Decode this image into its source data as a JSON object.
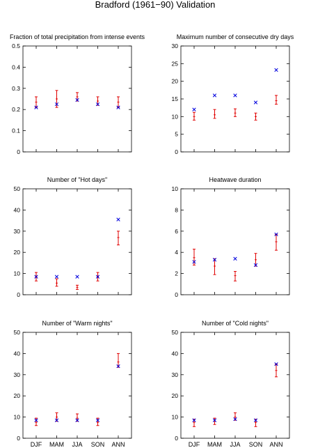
{
  "figure": {
    "title": "Bradford (1961−90) Validation"
  },
  "colors": {
    "model_errorbar": "#e00000",
    "observed_marker": "#0000dd",
    "axes": "#000000",
    "background": "#ffffff"
  },
  "chart_data": [
    {
      "type": "scatter",
      "title": "Fraction of total precipitation from intense events",
      "categories": [
        "DJF",
        "MAM",
        "JJA",
        "SON",
        "ANN"
      ],
      "ylim": [
        0,
        0.5
      ],
      "yticks": [
        "0",
        "0.1",
        "0.2",
        "0.3",
        "0.4",
        "0.5"
      ],
      "xticklabels_shown": false,
      "grid": false,
      "series": [
        {
          "marker": "errorbar",
          "center": [
            0.235,
            0.25,
            0.26,
            0.24,
            0.235
          ],
          "low": [
            0.21,
            0.21,
            0.24,
            0.22,
            0.21
          ],
          "high": [
            0.26,
            0.29,
            0.28,
            0.26,
            0.26
          ]
        },
        {
          "marker": "x",
          "values": [
            0.21,
            0.225,
            0.245,
            0.225,
            0.21
          ]
        }
      ]
    },
    {
      "type": "scatter",
      "title": "Maximum number of consecutive dry days",
      "categories": [
        "DJF",
        "MAM",
        "JJA",
        "SON",
        "ANN"
      ],
      "ylim": [
        0,
        30
      ],
      "yticks": [
        "0",
        "5",
        "10",
        "15",
        "20",
        "25",
        "30"
      ],
      "xticklabels_shown": false,
      "grid": false,
      "series": [
        {
          "marker": "errorbar",
          "center": [
            10,
            10.5,
            11,
            10,
            14.5
          ],
          "low": [
            9,
            9.5,
            10,
            9,
            13.5
          ],
          "high": [
            11.2,
            12,
            12.2,
            11,
            16
          ]
        },
        {
          "marker": "x",
          "values": [
            12,
            16,
            16,
            14,
            23.2
          ]
        }
      ]
    },
    {
      "type": "scatter",
      "title": "Number of \"Hot days\"",
      "categories": [
        "DJF",
        "MAM",
        "JJA",
        "SON",
        "ANN"
      ],
      "ylim": [
        0,
        50
      ],
      "yticks": [
        "0",
        "10",
        "20",
        "30",
        "40",
        "50"
      ],
      "xticklabels_shown": false,
      "grid": false,
      "series": [
        {
          "marker": "errorbar",
          "center": [
            8.5,
            5.5,
            3.5,
            8.5,
            27
          ],
          "low": [
            6.5,
            4,
            2.5,
            6.5,
            23.5
          ],
          "high": [
            10.5,
            7.5,
            4.5,
            10.5,
            30
          ]
        },
        {
          "marker": "x",
          "values": [
            8.5,
            8.5,
            8.5,
            8.5,
            35.5
          ]
        }
      ]
    },
    {
      "type": "scatter",
      "title": "Heatwave duration",
      "categories": [
        "DJF",
        "MAM",
        "JJA",
        "SON",
        "ANN"
      ],
      "ylim": [
        0,
        10
      ],
      "yticks": [
        "0",
        "2",
        "4",
        "6",
        "8",
        "10"
      ],
      "xticklabels_shown": false,
      "grid": false,
      "series": [
        {
          "marker": "errorbar",
          "center": [
            3.5,
            2.7,
            1.8,
            3.3,
            5
          ],
          "low": [
            2.8,
            1.9,
            1.3,
            2.7,
            4.2
          ],
          "high": [
            4.3,
            3.4,
            2.2,
            3.9,
            5.7
          ]
        },
        {
          "marker": "x",
          "values": [
            3.1,
            3.3,
            3.4,
            2.8,
            5.7
          ]
        }
      ]
    },
    {
      "type": "scatter",
      "title": "Number of \"Warm nights\"",
      "categories": [
        "DJF",
        "MAM",
        "JJA",
        "SON",
        "ANN"
      ],
      "ylim": [
        0,
        50
      ],
      "yticks": [
        "0",
        "10",
        "20",
        "30",
        "40",
        "50"
      ],
      "xticklabels_shown": true,
      "grid": false,
      "series": [
        {
          "marker": "errorbar",
          "center": [
            7.5,
            10,
            9.5,
            7.5,
            36
          ],
          "low": [
            6,
            8,
            8,
            6,
            33.5
          ],
          "high": [
            9.5,
            12,
            11.5,
            9.5,
            40
          ]
        },
        {
          "marker": "x",
          "values": [
            8.5,
            8.5,
            8.5,
            8.5,
            34
          ]
        }
      ]
    },
    {
      "type": "scatter",
      "title": "Number of \"Cold nights\"",
      "categories": [
        "DJF",
        "MAM",
        "JJA",
        "SON",
        "ANN"
      ],
      "ylim": [
        0,
        50
      ],
      "yticks": [
        "0",
        "10",
        "20",
        "30",
        "40",
        "50"
      ],
      "xticklabels_shown": true,
      "grid": false,
      "series": [
        {
          "marker": "errorbar",
          "center": [
            7.5,
            8,
            10,
            7.5,
            32
          ],
          "low": [
            5.5,
            6.5,
            8.5,
            5.5,
            29
          ],
          "high": [
            9,
            9.5,
            12,
            9,
            35
          ]
        },
        {
          "marker": "x",
          "values": [
            8.5,
            8.5,
            9,
            8.5,
            35
          ]
        }
      ]
    }
  ]
}
